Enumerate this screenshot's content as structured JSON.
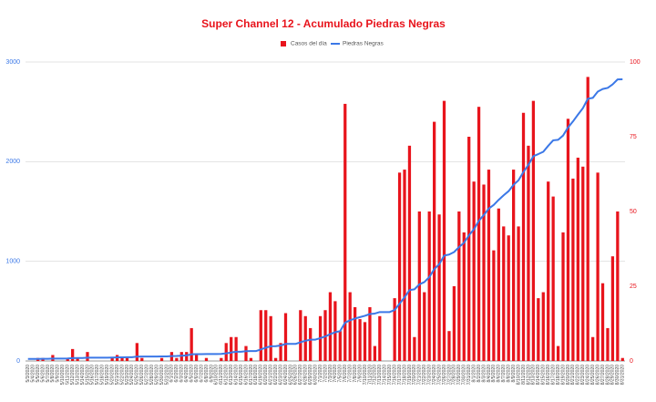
{
  "chart_data": {
    "type": "bar",
    "title": "Super Channel 12 - Acumulado Piedras Negras",
    "categories": [
      "5/3/2020",
      "5/4/2020",
      "5/5/2020",
      "5/6/2020",
      "5/7/2020",
      "5/8/2020",
      "5/9/2020",
      "5/10/2020",
      "5/11/2020",
      "5/12/2020",
      "5/13/2020",
      "5/14/2020",
      "5/15/2020",
      "5/16/2020",
      "5/17/2020",
      "5/18/2020",
      "5/19/2020",
      "5/20/2020",
      "5/21/2020",
      "5/22/2020",
      "5/23/2020",
      "5/24/2020",
      "5/25/2020",
      "5/26/2020",
      "5/27/2020",
      "5/28/2020",
      "5/29/2020",
      "5/30/2020",
      "5/31/2020",
      "6/1/2020",
      "6/2/2020",
      "6/3/2020",
      "6/4/2020",
      "6/5/2020",
      "6/6/2020",
      "6/7/2020",
      "6/8/2020",
      "6/9/2020",
      "6/10/2020",
      "6/11/2020",
      "6/12/2020",
      "6/13/2020",
      "6/14/2020",
      "6/15/2020",
      "6/16/2020",
      "6/17/2020",
      "6/18/2020",
      "6/19/2020",
      "6/20/2020",
      "6/21/2020",
      "6/22/2020",
      "6/23/2020",
      "6/24/2020",
      "6/25/2020",
      "6/26/2020",
      "6/27/2020",
      "6/28/2020",
      "6/29/2020",
      "6/30/2020",
      "7/1/2020",
      "7/2/2020",
      "7/3/2020",
      "7/4/2020",
      "7/5/2020",
      "7/6/2020",
      "7/7/2020",
      "7/8/2020",
      "7/9/2020",
      "7/10/2020",
      "7/11/2020",
      "7/12/2020",
      "7/13/2020",
      "7/14/2020",
      "7/15/2020",
      "7/16/2020",
      "7/17/2020",
      "7/18/2020",
      "7/19/2020",
      "7/20/2020",
      "7/21/2020",
      "7/22/2020",
      "7/23/2020",
      "7/24/2020",
      "7/25/2020",
      "7/26/2020",
      "7/27/2020",
      "7/28/2020",
      "7/29/2020",
      "7/30/2020",
      "7/31/2020",
      "8/1/2020",
      "8/2/2020",
      "8/3/2020",
      "8/4/2020",
      "8/5/2020",
      "8/6/2020",
      "8/7/2020",
      "8/8/2020",
      "8/9/2020",
      "8/10/2020",
      "8/11/2020",
      "8/12/2020",
      "8/13/2020",
      "8/14/2020",
      "8/15/2020",
      "8/16/2020",
      "8/17/2020",
      "8/18/2020",
      "8/19/2020",
      "8/20/2020",
      "8/21/2020",
      "8/22/2020",
      "8/23/2020",
      "8/24/2020",
      "8/25/2020",
      "8/26/2020",
      "8/27/2020",
      "8/28/2020",
      "8/29/2020",
      "8/30/2020",
      "8/31/2020"
    ],
    "series": [
      {
        "name": "Casos del día",
        "type": "bar",
        "axis": "y2",
        "color": "#e8141c",
        "values": [
          0,
          0,
          1,
          1,
          0,
          2,
          0,
          0,
          1,
          4,
          1,
          0,
          3,
          0,
          0,
          0,
          0,
          1,
          2,
          1,
          1,
          0,
          6,
          1,
          0,
          0,
          0,
          1,
          0,
          3,
          1,
          3,
          3,
          11,
          2,
          0,
          1,
          0,
          0,
          1,
          6,
          8,
          8,
          0,
          5,
          1,
          0,
          17,
          17,
          15,
          1,
          6,
          16,
          0,
          0,
          17,
          15,
          11,
          0,
          15,
          17,
          23,
          20,
          10,
          86,
          23,
          18,
          14,
          13,
          18,
          5,
          15,
          0,
          0,
          21,
          63,
          64,
          72,
          8,
          50,
          23,
          50,
          80,
          49,
          87,
          10,
          25,
          50,
          43,
          75,
          60,
          85,
          59,
          64,
          37,
          51,
          45,
          42,
          64,
          45,
          83,
          72,
          87,
          21,
          23,
          60,
          55,
          5,
          43,
          81,
          61,
          68,
          65,
          95,
          8,
          63,
          26,
          11,
          35,
          50,
          1
        ]
      },
      {
        "name": "Piedras Negras",
        "type": "line",
        "axis": "y",
        "color": "#3b78e7",
        "values": [
          20,
          20,
          21,
          22,
          22,
          24,
          24,
          24,
          25,
          29,
          30,
          30,
          33,
          33,
          33,
          33,
          33,
          34,
          36,
          37,
          38,
          38,
          44,
          45,
          45,
          45,
          45,
          46,
          46,
          49,
          50,
          53,
          56,
          67,
          69,
          69,
          70,
          70,
          70,
          71,
          77,
          85,
          93,
          93,
          98,
          99,
          99,
          116,
          133,
          148,
          149,
          155,
          171,
          171,
          171,
          188,
          203,
          214,
          214,
          229,
          246,
          269,
          289,
          299,
          385,
          408,
          426,
          440,
          453,
          471,
          476,
          491,
          491,
          491,
          512,
          575,
          639,
          711,
          719,
          769,
          792,
          842,
          922,
          971,
          1058,
          1068,
          1093,
          1143,
          1186,
          1261,
          1321,
          1406,
          1465,
          1529,
          1566,
          1617,
          1662,
          1704,
          1768,
          1813,
          1896,
          1968,
          2055,
          2076,
          2099,
          2159,
          2214,
          2219,
          2262,
          2343,
          2404,
          2472,
          2537,
          2632,
          2640,
          2703,
          2729,
          2740,
          2775,
          2825,
          2826
        ]
      }
    ],
    "ylim": [
      0,
      3000
    ],
    "yticks": [
      0,
      1000,
      2000,
      3000
    ],
    "y2lim": [
      0,
      100
    ],
    "y2ticks": [
      0,
      25,
      50,
      75,
      100
    ],
    "grid": true,
    "legend": "top"
  }
}
